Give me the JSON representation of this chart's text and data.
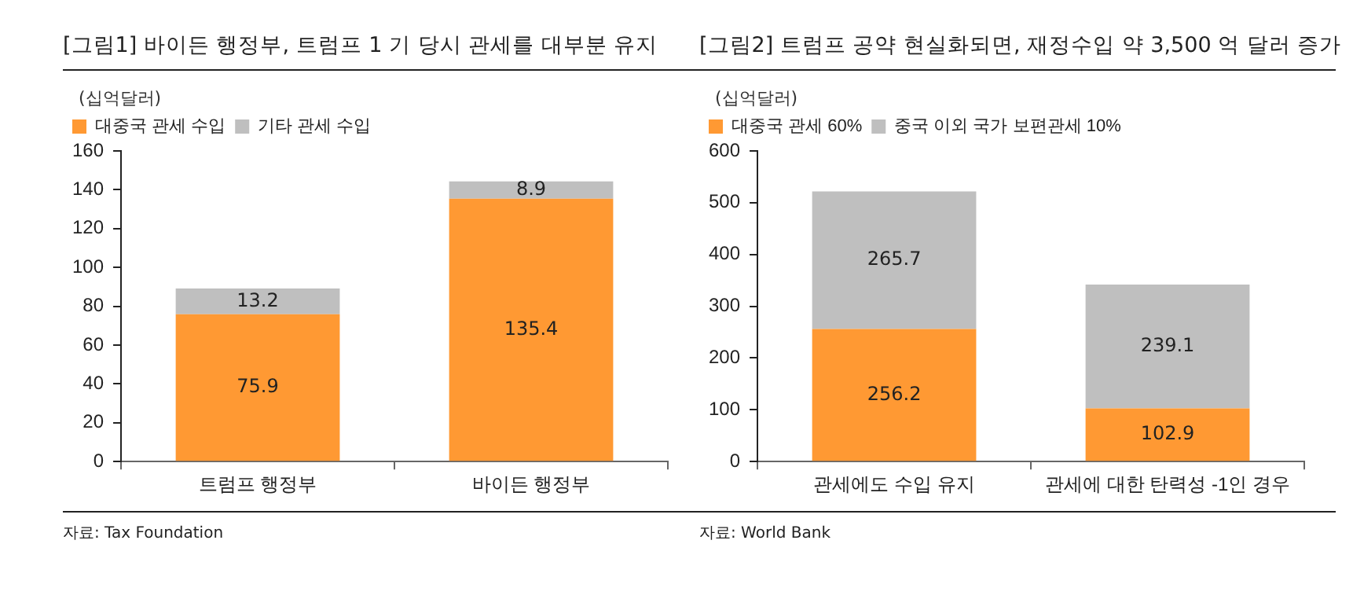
{
  "chart_data": [
    {
      "type": "bar",
      "title": "[그림1]      바이든 행정부, 트럼프 1 기 당시 관세를 대부분 유지",
      "ylabel": "(십억달러)",
      "categories": [
        "트럼프 행정부",
        "바이든 행정부"
      ],
      "stacked": true,
      "series": [
        {
          "name": "대중국 관세 수입",
          "color": "#ff9933",
          "values": [
            75.9,
            135.4
          ]
        },
        {
          "name": "기타 관세 수입",
          "color": "#bfbfbf",
          "values": [
            13.2,
            8.9
          ]
        }
      ],
      "ylim": [
        0,
        160
      ],
      "yticks": [
        0,
        20,
        40,
        60,
        80,
        100,
        120,
        140,
        160
      ],
      "data_labels": true,
      "legend": "top left",
      "annotations": [
        "자료: Tax Foundation"
      ]
    },
    {
      "type": "bar",
      "title": "[그림2]      트럼프 공약 현실화되면, 재정수입 약 3,500 억 달러 증가",
      "ylabel": "(십억달러)",
      "categories": [
        "관세에도 수입 유지",
        "관세에 대한 탄력성 -1인 경우"
      ],
      "stacked": true,
      "series": [
        {
          "name": "대중국 관세 60%",
          "color": "#ff9933",
          "values": [
            256.2,
            102.9
          ]
        },
        {
          "name": "중국 이외 국가 보편관세 10%",
          "color": "#bfbfbf",
          "values": [
            265.7,
            239.1
          ]
        }
      ],
      "ylim": [
        0,
        600
      ],
      "yticks": [
        0,
        100,
        200,
        300,
        400,
        500,
        600
      ],
      "data_labels": true,
      "legend": "top left",
      "annotations": [
        "자료: World Bank"
      ]
    }
  ]
}
